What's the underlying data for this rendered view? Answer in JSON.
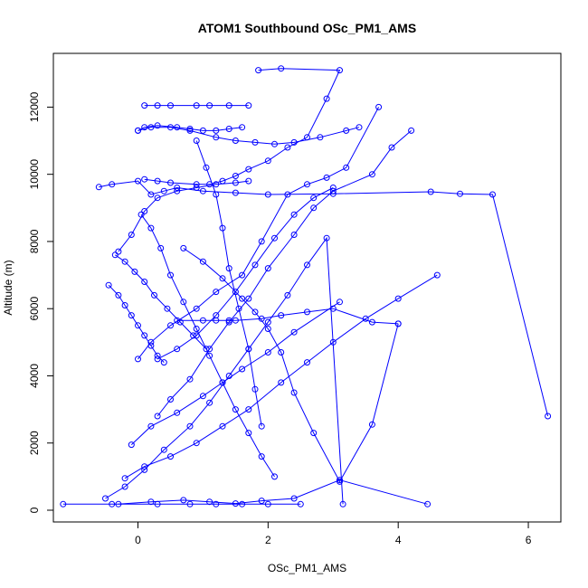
{
  "chart_data": {
    "type": "line",
    "title": "ATOM1 Southbound OSc_PM1_AMS",
    "xlabel": "OSc_PM1_AMS",
    "ylabel": "Altitude (m)",
    "xlim": [
      -1.3,
      6.5
    ],
    "ylim": [
      -350,
      13600
    ],
    "xticks": [
      0,
      2,
      4,
      6
    ],
    "yticks": [
      0,
      2000,
      4000,
      6000,
      8000,
      10000,
      12000
    ],
    "grid": false,
    "legend": "none",
    "color": "#0000ff",
    "series": [
      {
        "x": [
          1.85,
          2.2,
          3.1,
          2.9,
          2.6,
          2.3,
          2.0,
          1.7,
          1.5,
          1.3,
          1.1,
          0.9,
          0.5,
          0.3,
          0.1
        ],
        "y": [
          13100,
          13150,
          13100,
          12250,
          11100,
          10800,
          10400,
          10150,
          9950,
          9800,
          9700,
          9700,
          9750,
          9800,
          9850
        ]
      },
      {
        "x": [
          0.1,
          0.3,
          0.5,
          0.9,
          1.1,
          1.4,
          1.7
        ],
        "y": [
          12050,
          12050,
          12050,
          12050,
          12050,
          12050,
          12050
        ]
      },
      {
        "x": [
          -0.6,
          -0.4,
          0.0,
          0.2,
          0.4,
          0.6,
          1.0,
          1.5,
          2.0,
          3.0,
          4.5,
          4.95,
          5.45,
          6.3
        ],
        "y": [
          9620,
          9700,
          9800,
          9400,
          9500,
          9600,
          9500,
          9450,
          9400,
          9420,
          9480,
          9420,
          9400,
          2800
        ]
      },
      {
        "x": [
          0.0,
          0.1,
          0.3,
          0.6,
          0.8,
          1.0,
          1.2,
          1.4,
          1.6
        ],
        "y": [
          11300,
          11400,
          11450,
          11400,
          11350,
          11300,
          11300,
          11350,
          11400
        ]
      },
      {
        "x": [
          0.0,
          0.2,
          0.5,
          0.8,
          1.2,
          1.5,
          1.8,
          2.1,
          2.4,
          2.8,
          3.2,
          3.4
        ],
        "y": [
          11300,
          11400,
          11400,
          11300,
          11100,
          11000,
          10950,
          10900,
          10950,
          11100,
          11300,
          11400
        ]
      },
      {
        "x": [
          3.7,
          3.2,
          2.9,
          2.6,
          2.3,
          1.9,
          1.6,
          1.2,
          0.9,
          0.5,
          0.2,
          0.0
        ],
        "y": [
          12000,
          10200,
          9900,
          9700,
          9400,
          8000,
          7000,
          6500,
          6000,
          5500,
          5000,
          4500
        ]
      },
      {
        "x": [
          4.2,
          3.9,
          3.6,
          3.0,
          2.7,
          2.4,
          2.0,
          1.7,
          1.4,
          1.1,
          0.8,
          0.5,
          0.3
        ],
        "y": [
          11300,
          10800,
          10000,
          9500,
          9000,
          8200,
          7200,
          6300,
          5600,
          4800,
          3900,
          3300,
          2800
        ]
      },
      {
        "x": [
          -0.3,
          -0.1,
          0.1,
          0.3,
          0.6,
          0.9,
          1.2,
          1.5,
          1.7
        ],
        "y": [
          7700,
          8200,
          8900,
          9300,
          9500,
          9600,
          9700,
          9750,
          9800
        ]
      },
      {
        "x": [
          -0.45,
          -0.3,
          -0.2,
          -0.1,
          0.0,
          0.1,
          0.2,
          0.3,
          0.4
        ],
        "y": [
          6700,
          6400,
          6100,
          5800,
          5500,
          5200,
          4900,
          4600,
          4400
        ]
      },
      {
        "x": [
          0.6,
          1.0,
          1.2,
          1.4,
          1.5,
          1.9,
          2.2,
          2.6,
          3.0,
          3.6,
          4.0
        ],
        "y": [
          5650,
          5650,
          5650,
          5650,
          5650,
          5700,
          5800,
          5900,
          6000,
          5600,
          5550
        ]
      },
      {
        "x": [
          4.0,
          3.6,
          3.1,
          2.7,
          2.4,
          2.2,
          2.0,
          1.8,
          1.6,
          1.3,
          1.0,
          0.7
        ],
        "y": [
          5550,
          2550,
          850,
          2300,
          3500,
          4700,
          5400,
          5900,
          6300,
          6900,
          7400,
          7800
        ]
      },
      {
        "x": [
          -0.1,
          0.2,
          0.6,
          1.0,
          1.3,
          1.6,
          2.0,
          2.4,
          3.1
        ],
        "y": [
          1950,
          2500,
          2900,
          3400,
          3800,
          4200,
          4700,
          5300,
          6200
        ]
      },
      {
        "x": [
          -0.2,
          0.1,
          0.5,
          0.9,
          1.3,
          1.7,
          2.2,
          2.6,
          3.0,
          3.5,
          4.0,
          4.6
        ],
        "y": [
          950,
          1300,
          1600,
          2000,
          2500,
          3000,
          3800,
          4400,
          5000,
          5700,
          6300,
          7000
        ]
      },
      {
        "x": [
          -1.15,
          -0.4,
          0.3,
          0.8,
          1.2,
          1.6,
          2.0,
          2.5
        ],
        "y": [
          180,
          180,
          180,
          180,
          180,
          180,
          180,
          180
        ]
      },
      {
        "x": [
          -0.3,
          0.2,
          0.7,
          1.1,
          1.5,
          1.9,
          2.4,
          3.1,
          4.45
        ],
        "y": [
          180,
          250,
          300,
          250,
          200,
          280,
          350,
          900,
          180
        ]
      },
      {
        "x": [
          -0.5,
          -0.2,
          0.1,
          0.4,
          0.8,
          1.1,
          1.4,
          1.7,
          2.0,
          2.3,
          2.6,
          2.9,
          3.15
        ],
        "y": [
          350,
          700,
          1200,
          1800,
          2500,
          3200,
          4000,
          4800,
          5600,
          6400,
          7300,
          8100,
          180
        ]
      },
      {
        "x": [
          0.05,
          0.2,
          0.35,
          0.5,
          0.7,
          0.9,
          1.1,
          1.3,
          1.5,
          1.7,
          1.9,
          2.1
        ],
        "y": [
          8800,
          8400,
          7800,
          7000,
          6200,
          5400,
          4600,
          3800,
          3000,
          2300,
          1600,
          1000
        ]
      },
      {
        "x": [
          1.9,
          1.8,
          1.7,
          1.55,
          1.4,
          1.3,
          1.2,
          1.05,
          0.9
        ],
        "y": [
          2500,
          3600,
          4800,
          6000,
          7200,
          8400,
          9400,
          10200,
          11000
        ]
      },
      {
        "x": [
          0.3,
          0.6,
          0.9,
          1.2,
          1.5,
          1.8,
          2.1,
          2.4,
          2.7,
          3.0
        ],
        "y": [
          4500,
          4800,
          5200,
          5800,
          6500,
          7300,
          8100,
          8800,
          9300,
          9600
        ]
      },
      {
        "x": [
          -0.35,
          -0.2,
          -0.05,
          0.1,
          0.25,
          0.45,
          0.65,
          0.85,
          1.05
        ],
        "y": [
          7600,
          7400,
          7100,
          6800,
          6400,
          6000,
          5600,
          5200,
          4800
        ]
      }
    ]
  }
}
